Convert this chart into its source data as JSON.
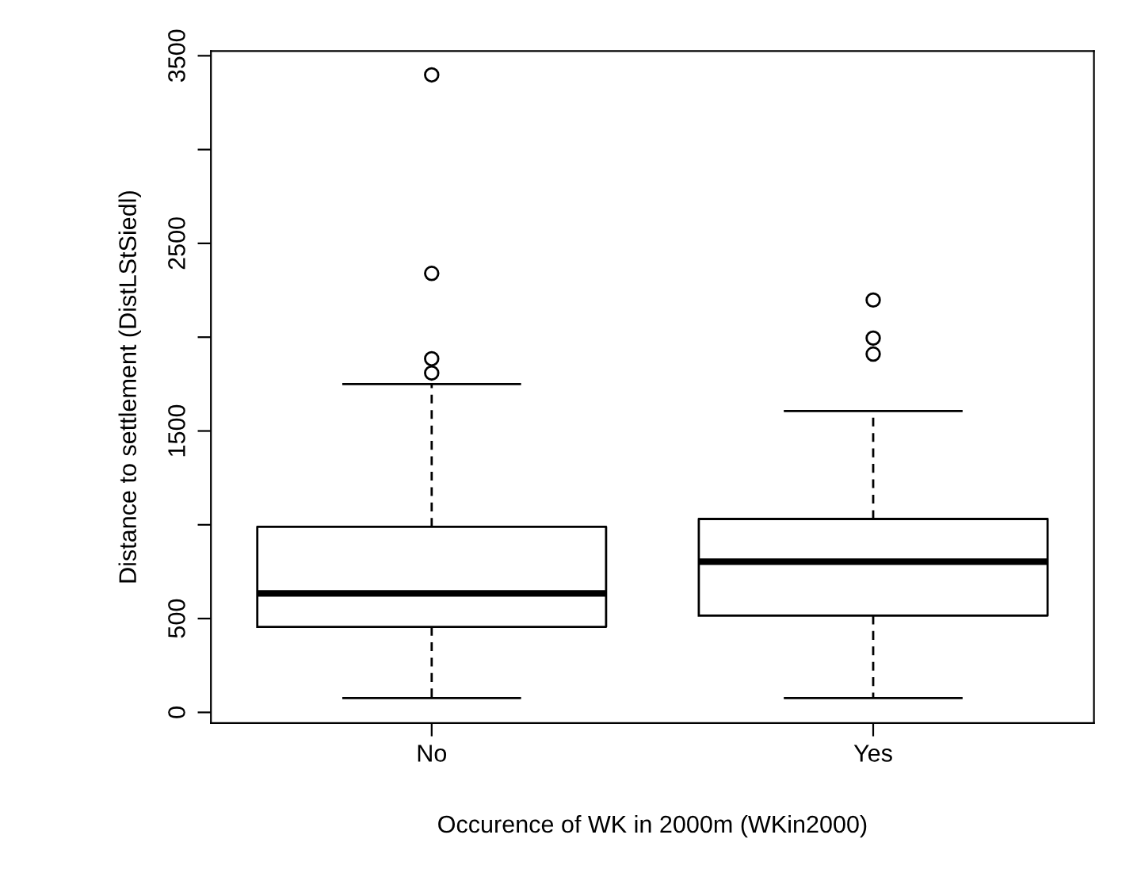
{
  "chart_data": {
    "type": "box",
    "xlabel": "Occurence of WK in 2000m (WKin2000)",
    "ylabel": "Distance to settlement (DistLStSiedl)",
    "categories": [
      "No",
      "Yes"
    ],
    "boxes": [
      {
        "low": 76,
        "q1": 456,
        "median": 634,
        "q3": 989,
        "high": 1750,
        "outliers": [
          1809,
          1885,
          2340,
          3398
        ]
      },
      {
        "low": 76,
        "q1": 516,
        "median": 803,
        "q3": 1031,
        "high": 1606,
        "outliers": [
          1910,
          1995,
          2198
        ]
      }
    ],
    "ylim": [
      -57,
      3525
    ],
    "yticks": [
      0,
      500,
      {
        "value": 1000,
        "label": null
      },
      1500,
      {
        "value": 2000,
        "label": null
      },
      2500,
      {
        "value": 3000,
        "label": null
      },
      3500
    ],
    "grid": false,
    "legend": false
  }
}
